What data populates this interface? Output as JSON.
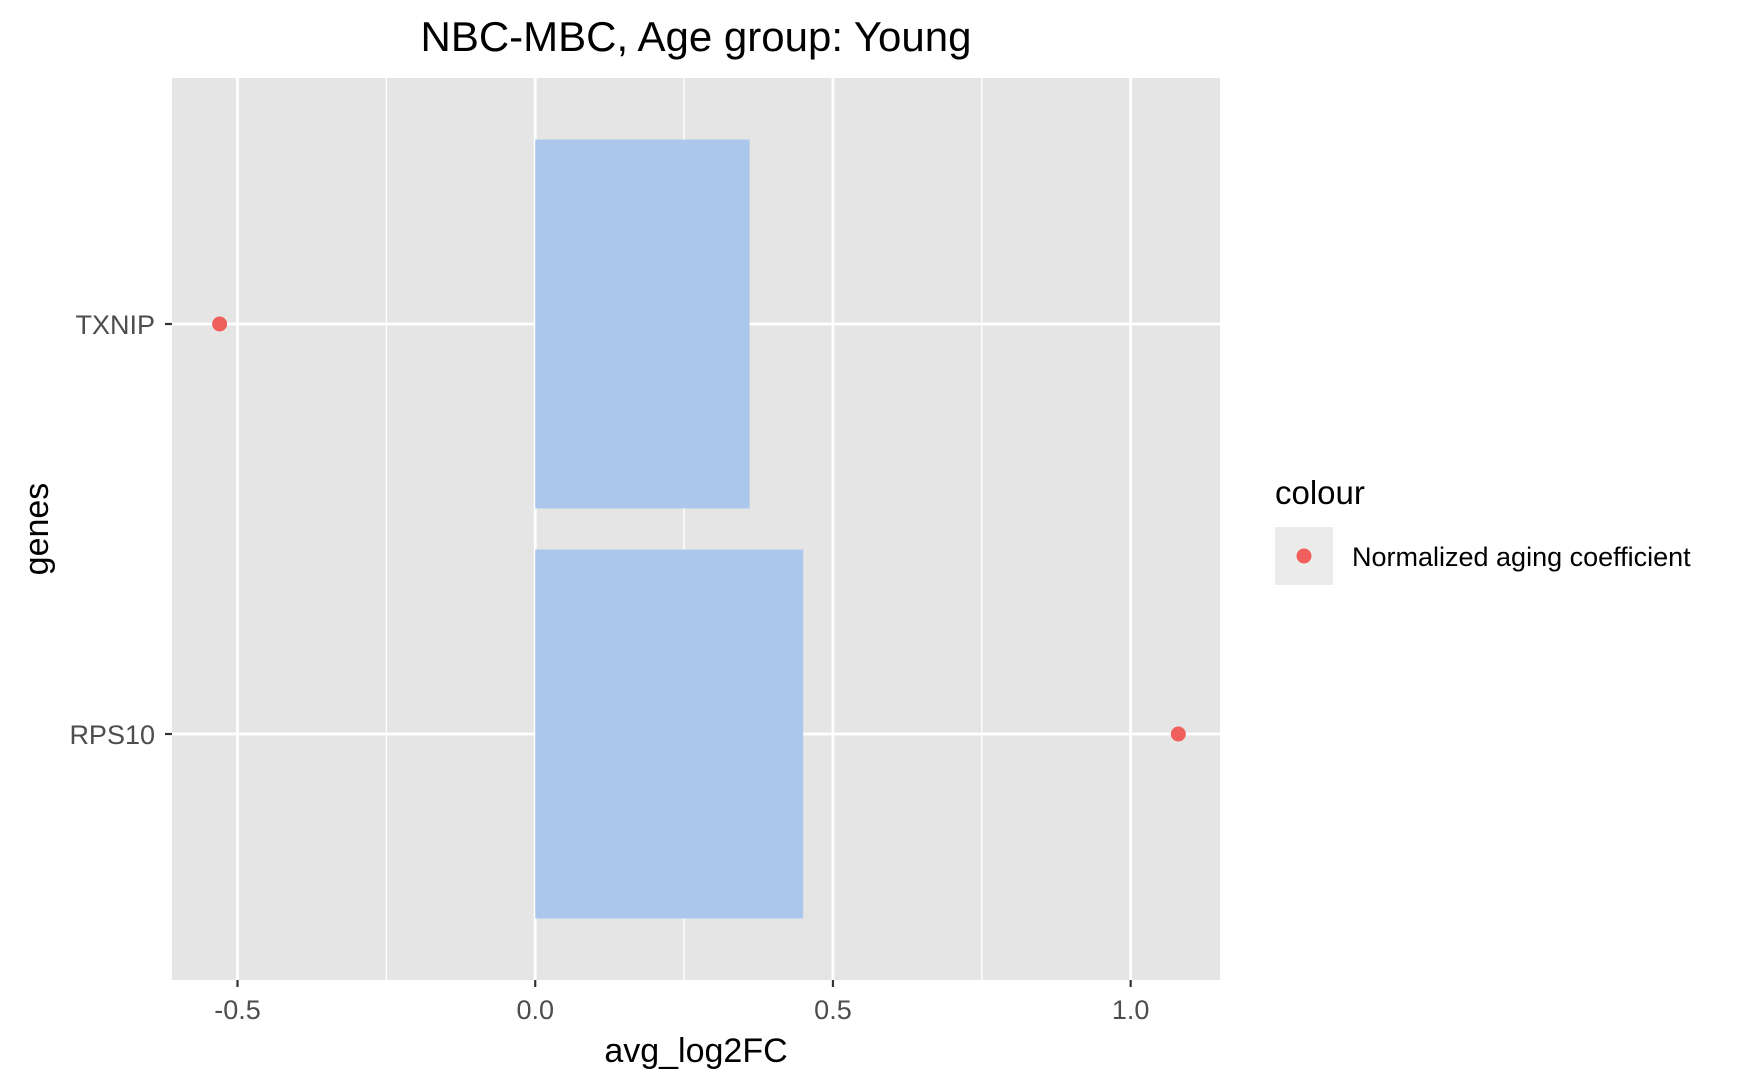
{
  "chart_data": {
    "type": "bar",
    "orientation": "horizontal",
    "title": "NBC-MBC, Age group: Young",
    "xlabel": "avg_log2FC",
    "ylabel": "genes",
    "categories": [
      "TXNIP",
      "RPS10"
    ],
    "xlim": [
      -0.61,
      1.15
    ],
    "x_ticks": [
      -0.5,
      0.0,
      0.5,
      1.0
    ],
    "x_tick_labels": [
      "-0.5",
      "0.0",
      "0.5",
      "1.0"
    ],
    "grid": true,
    "bars": {
      "values": [
        0.36,
        0.45
      ],
      "color": "#abc7eb"
    },
    "points": {
      "values": [
        -0.53,
        1.08
      ],
      "color": "#ef5f5b"
    },
    "legend": {
      "title": "colour",
      "position": "right",
      "entries": [
        {
          "label": "Normalized aging coefficient",
          "color": "#ef5f5b"
        }
      ]
    },
    "colors": {
      "panel_background": "#e5e5e5",
      "grid": "#ffffff",
      "legend_key_background": "#ebebeb"
    }
  }
}
